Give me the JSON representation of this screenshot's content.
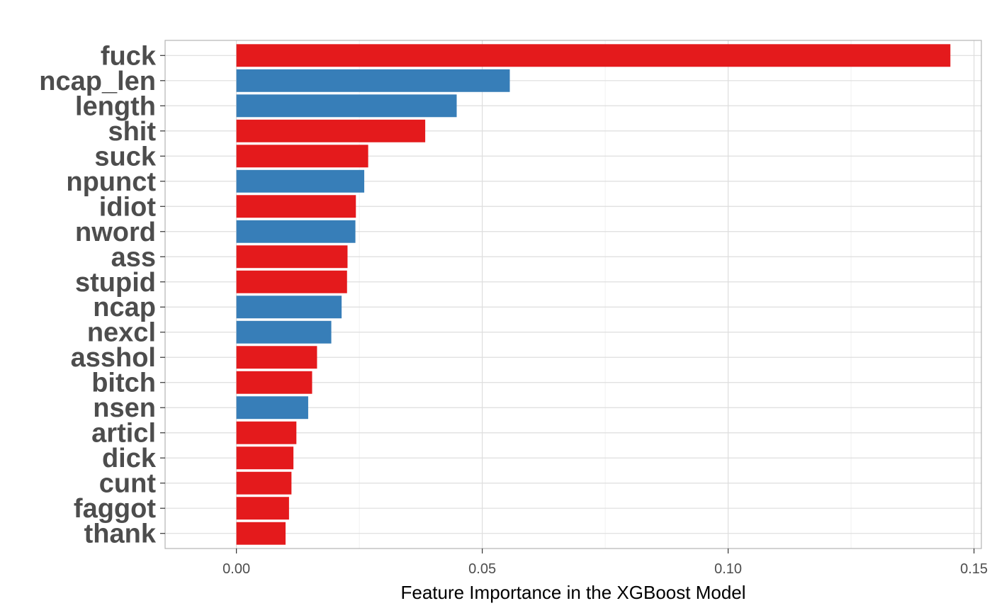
{
  "chart_data": {
    "type": "bar",
    "orientation": "horizontal",
    "xlabel": "Feature Importance in the XGBoost Model",
    "ylabel": "",
    "xlim": [
      -0.0145,
      0.1515
    ],
    "xticks": [
      0.0,
      0.05,
      0.1,
      0.15
    ],
    "xtick_labels": [
      "0.00",
      "0.05",
      "0.10",
      "0.15"
    ],
    "grid": true,
    "colors": {
      "word": "#e41a1c",
      "meta": "#377eb8"
    },
    "categories": [
      "fuck",
      "ncap_len",
      "length",
      "shit",
      "suck",
      "npunct",
      "idiot",
      "nword",
      "ass",
      "stupid",
      "ncap",
      "nexcl",
      "asshol",
      "bitch",
      "nsen",
      "articl",
      "dick",
      "cunt",
      "faggot",
      "thank"
    ],
    "values": [
      0.1452,
      0.0556,
      0.0448,
      0.0384,
      0.0268,
      0.026,
      0.0243,
      0.0242,
      0.0226,
      0.0225,
      0.0214,
      0.0193,
      0.0164,
      0.0154,
      0.0146,
      0.0122,
      0.0116,
      0.0112,
      0.0107,
      0.01
    ],
    "groups": [
      "word",
      "meta",
      "meta",
      "word",
      "word",
      "meta",
      "word",
      "meta",
      "word",
      "word",
      "meta",
      "meta",
      "word",
      "word",
      "meta",
      "word",
      "word",
      "word",
      "word",
      "word"
    ]
  }
}
